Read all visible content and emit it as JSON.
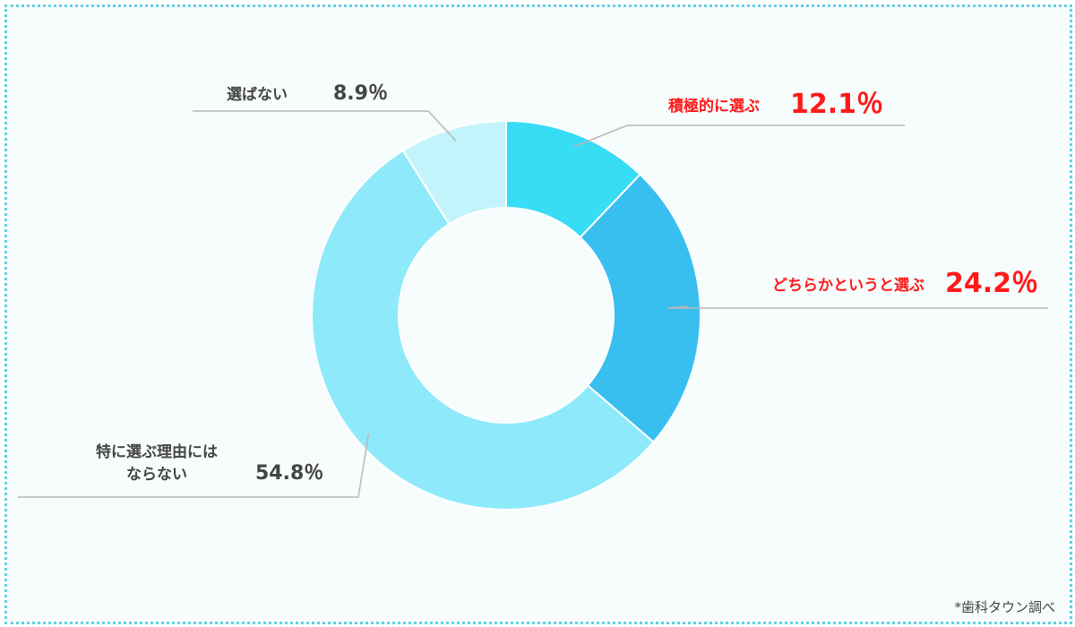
{
  "chart_data": {
    "type": "pie",
    "variant": "donut",
    "title": "",
    "slices": [
      {
        "label": "積極的に選ぶ",
        "value": 12.1,
        "value_text": "12.1％",
        "color": "#37dcf5",
        "label_color": "#ff1a1a"
      },
      {
        "label": "どちらかというと選ぶ",
        "value": 24.2,
        "value_text": "24.2％",
        "color": "#38bff0",
        "label_color": "#ff1a1a"
      },
      {
        "label": "特に選ぶ理由には\nならない",
        "value": 54.8,
        "value_text": "54.8％",
        "color": "#8eeafb",
        "label_color": "#444444"
      },
      {
        "label": "選ばない",
        "value": 8.9,
        "value_text": "8.9％",
        "color": "#c4f4fb",
        "label_color": "#444444"
      }
    ],
    "start": "top",
    "direction": "clockwise",
    "legend": "none"
  },
  "source_note": "*歯科タウン調べ"
}
